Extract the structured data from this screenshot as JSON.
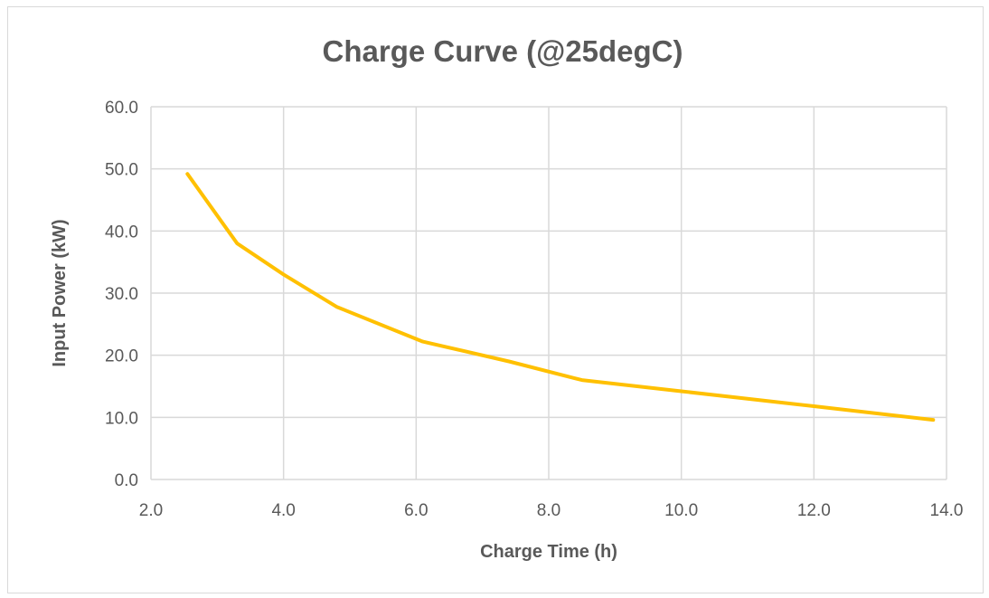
{
  "chart_data": {
    "type": "line",
    "title": "Charge Curve (@25degC)",
    "xlabel": "Charge Time (h)",
    "ylabel": "Input Power (kW)",
    "xlim": [
      2.0,
      14.0
    ],
    "ylim": [
      0.0,
      60.0
    ],
    "x_ticks": [
      "2.0",
      "4.0",
      "6.0",
      "8.0",
      "10.0",
      "12.0",
      "14.0"
    ],
    "y_ticks": [
      "0.0",
      "10.0",
      "20.0",
      "30.0",
      "40.0",
      "50.0",
      "60.0"
    ],
    "grid": true,
    "legend": "none",
    "series": [
      {
        "color": "#ffc000",
        "x": [
          2.55,
          3.3,
          4.0,
          4.8,
          6.1,
          7.4,
          8.5,
          10.0,
          12.0,
          13.8
        ],
        "y": [
          49.2,
          38.0,
          33.0,
          27.8,
          22.2,
          19.0,
          16.0,
          14.2,
          11.8,
          9.6
        ]
      }
    ]
  }
}
